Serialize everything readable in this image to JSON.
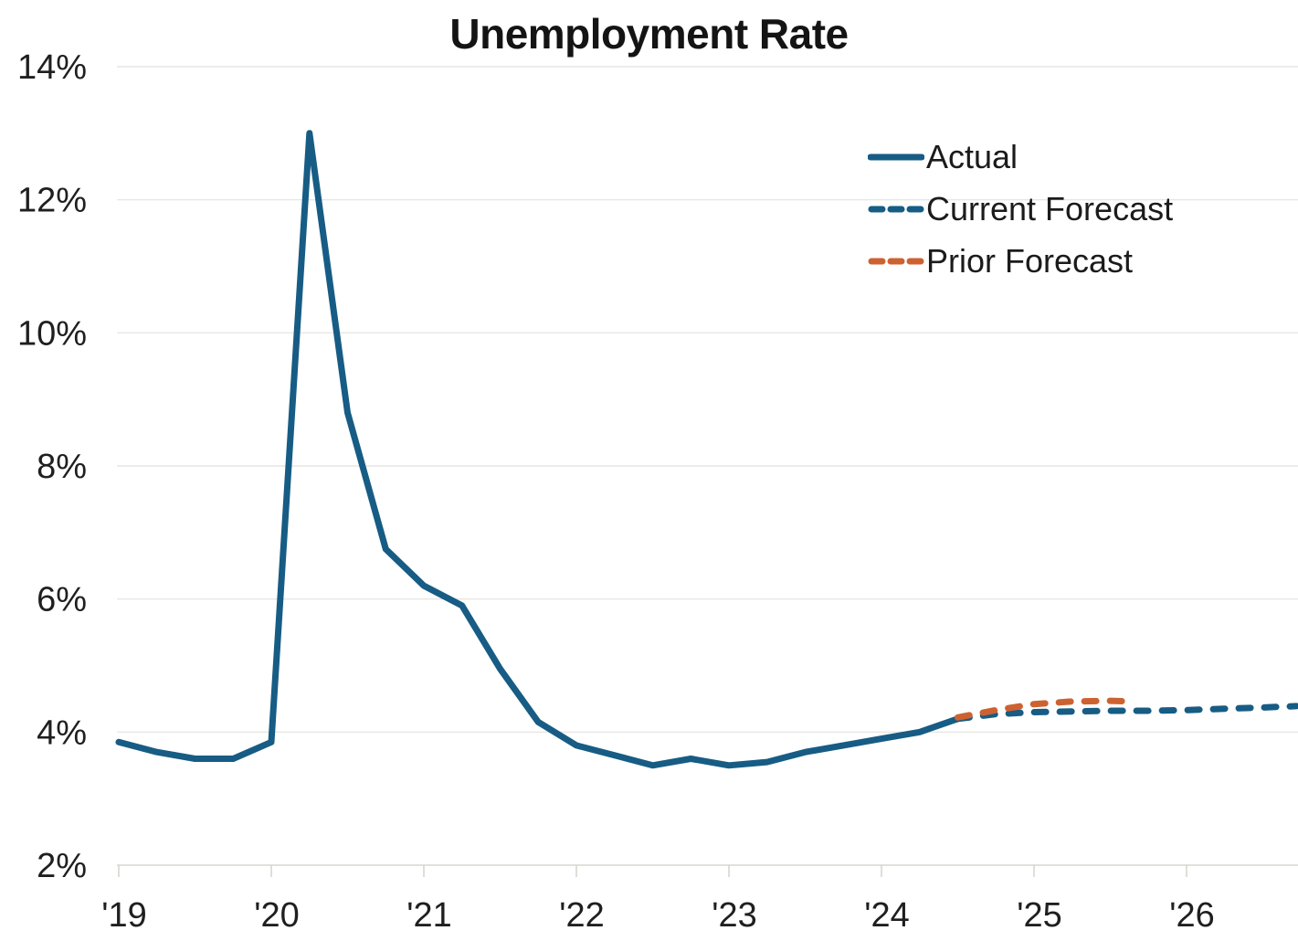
{
  "title": "Unemployment Rate",
  "colors": {
    "actual_blue": "#175C84",
    "forecast_blue": "#175C84",
    "prior_orange": "#CD6231",
    "gridline": "#E8E6E1",
    "axis": "#D7D5D0",
    "text": "#1B1B1B",
    "title_text": "#141414",
    "background": "#FFFFFF"
  },
  "chart_data": {
    "type": "line",
    "title": "Unemployment Rate",
    "xlabel": "",
    "ylabel": "",
    "ylim": [
      2,
      14
    ],
    "xlim": [
      2018.99,
      2026.85
    ],
    "grid": "horizontal-only",
    "legend_position": "upper-right",
    "y_unit": "percent",
    "x_unit": "year",
    "yticks": [
      {
        "value": 2,
        "label": "2%"
      },
      {
        "value": 4,
        "label": "4%"
      },
      {
        "value": 6,
        "label": "6%"
      },
      {
        "value": 8,
        "label": "8%"
      },
      {
        "value": 10,
        "label": "10%"
      },
      {
        "value": 12,
        "label": "12%"
      },
      {
        "value": 14,
        "label": "14%"
      }
    ],
    "xticks": [
      {
        "value": 2019,
        "label": "'19"
      },
      {
        "value": 2020,
        "label": "'20"
      },
      {
        "value": 2021,
        "label": "'21"
      },
      {
        "value": 2022,
        "label": "'22"
      },
      {
        "value": 2023,
        "label": "'23"
      },
      {
        "value": 2024,
        "label": "'24"
      },
      {
        "value": 2025,
        "label": "'25"
      },
      {
        "value": 2026,
        "label": "'26"
      }
    ],
    "series": [
      {
        "name": "Actual",
        "style": "solid",
        "color": "#175C84",
        "points": [
          [
            2019.0,
            3.85
          ],
          [
            2019.25,
            3.7
          ],
          [
            2019.5,
            3.6
          ],
          [
            2019.75,
            3.6
          ],
          [
            2020.0,
            3.85
          ],
          [
            2020.25,
            13.0
          ],
          [
            2020.5,
            8.8
          ],
          [
            2020.75,
            6.75
          ],
          [
            2021.0,
            6.2
          ],
          [
            2021.25,
            5.9
          ],
          [
            2021.5,
            4.95
          ],
          [
            2021.75,
            4.15
          ],
          [
            2022.0,
            3.8
          ],
          [
            2022.25,
            3.65
          ],
          [
            2022.5,
            3.5
          ],
          [
            2022.75,
            3.6
          ],
          [
            2023.0,
            3.5
          ],
          [
            2023.25,
            3.55
          ],
          [
            2023.5,
            3.7
          ],
          [
            2023.75,
            3.8
          ],
          [
            2024.0,
            3.9
          ],
          [
            2024.25,
            4.0
          ],
          [
            2024.5,
            4.2
          ]
        ]
      },
      {
        "name": "Current Forecast",
        "style": "dashed",
        "color": "#175C84",
        "points": [
          [
            2024.5,
            4.2
          ],
          [
            2024.75,
            4.27
          ],
          [
            2025.0,
            4.3
          ],
          [
            2025.25,
            4.31
          ],
          [
            2025.5,
            4.32
          ],
          [
            2025.75,
            4.32
          ],
          [
            2026.0,
            4.33
          ],
          [
            2026.25,
            4.35
          ],
          [
            2026.5,
            4.37
          ],
          [
            2026.72,
            4.39
          ]
        ]
      },
      {
        "name": "Prior Forecast",
        "style": "dashed",
        "color": "#CD6231",
        "points": [
          [
            2024.5,
            4.22
          ],
          [
            2024.75,
            4.33
          ],
          [
            2025.0,
            4.42
          ],
          [
            2025.25,
            4.46
          ],
          [
            2025.5,
            4.47
          ],
          [
            2025.65,
            4.46
          ]
        ]
      }
    ]
  }
}
